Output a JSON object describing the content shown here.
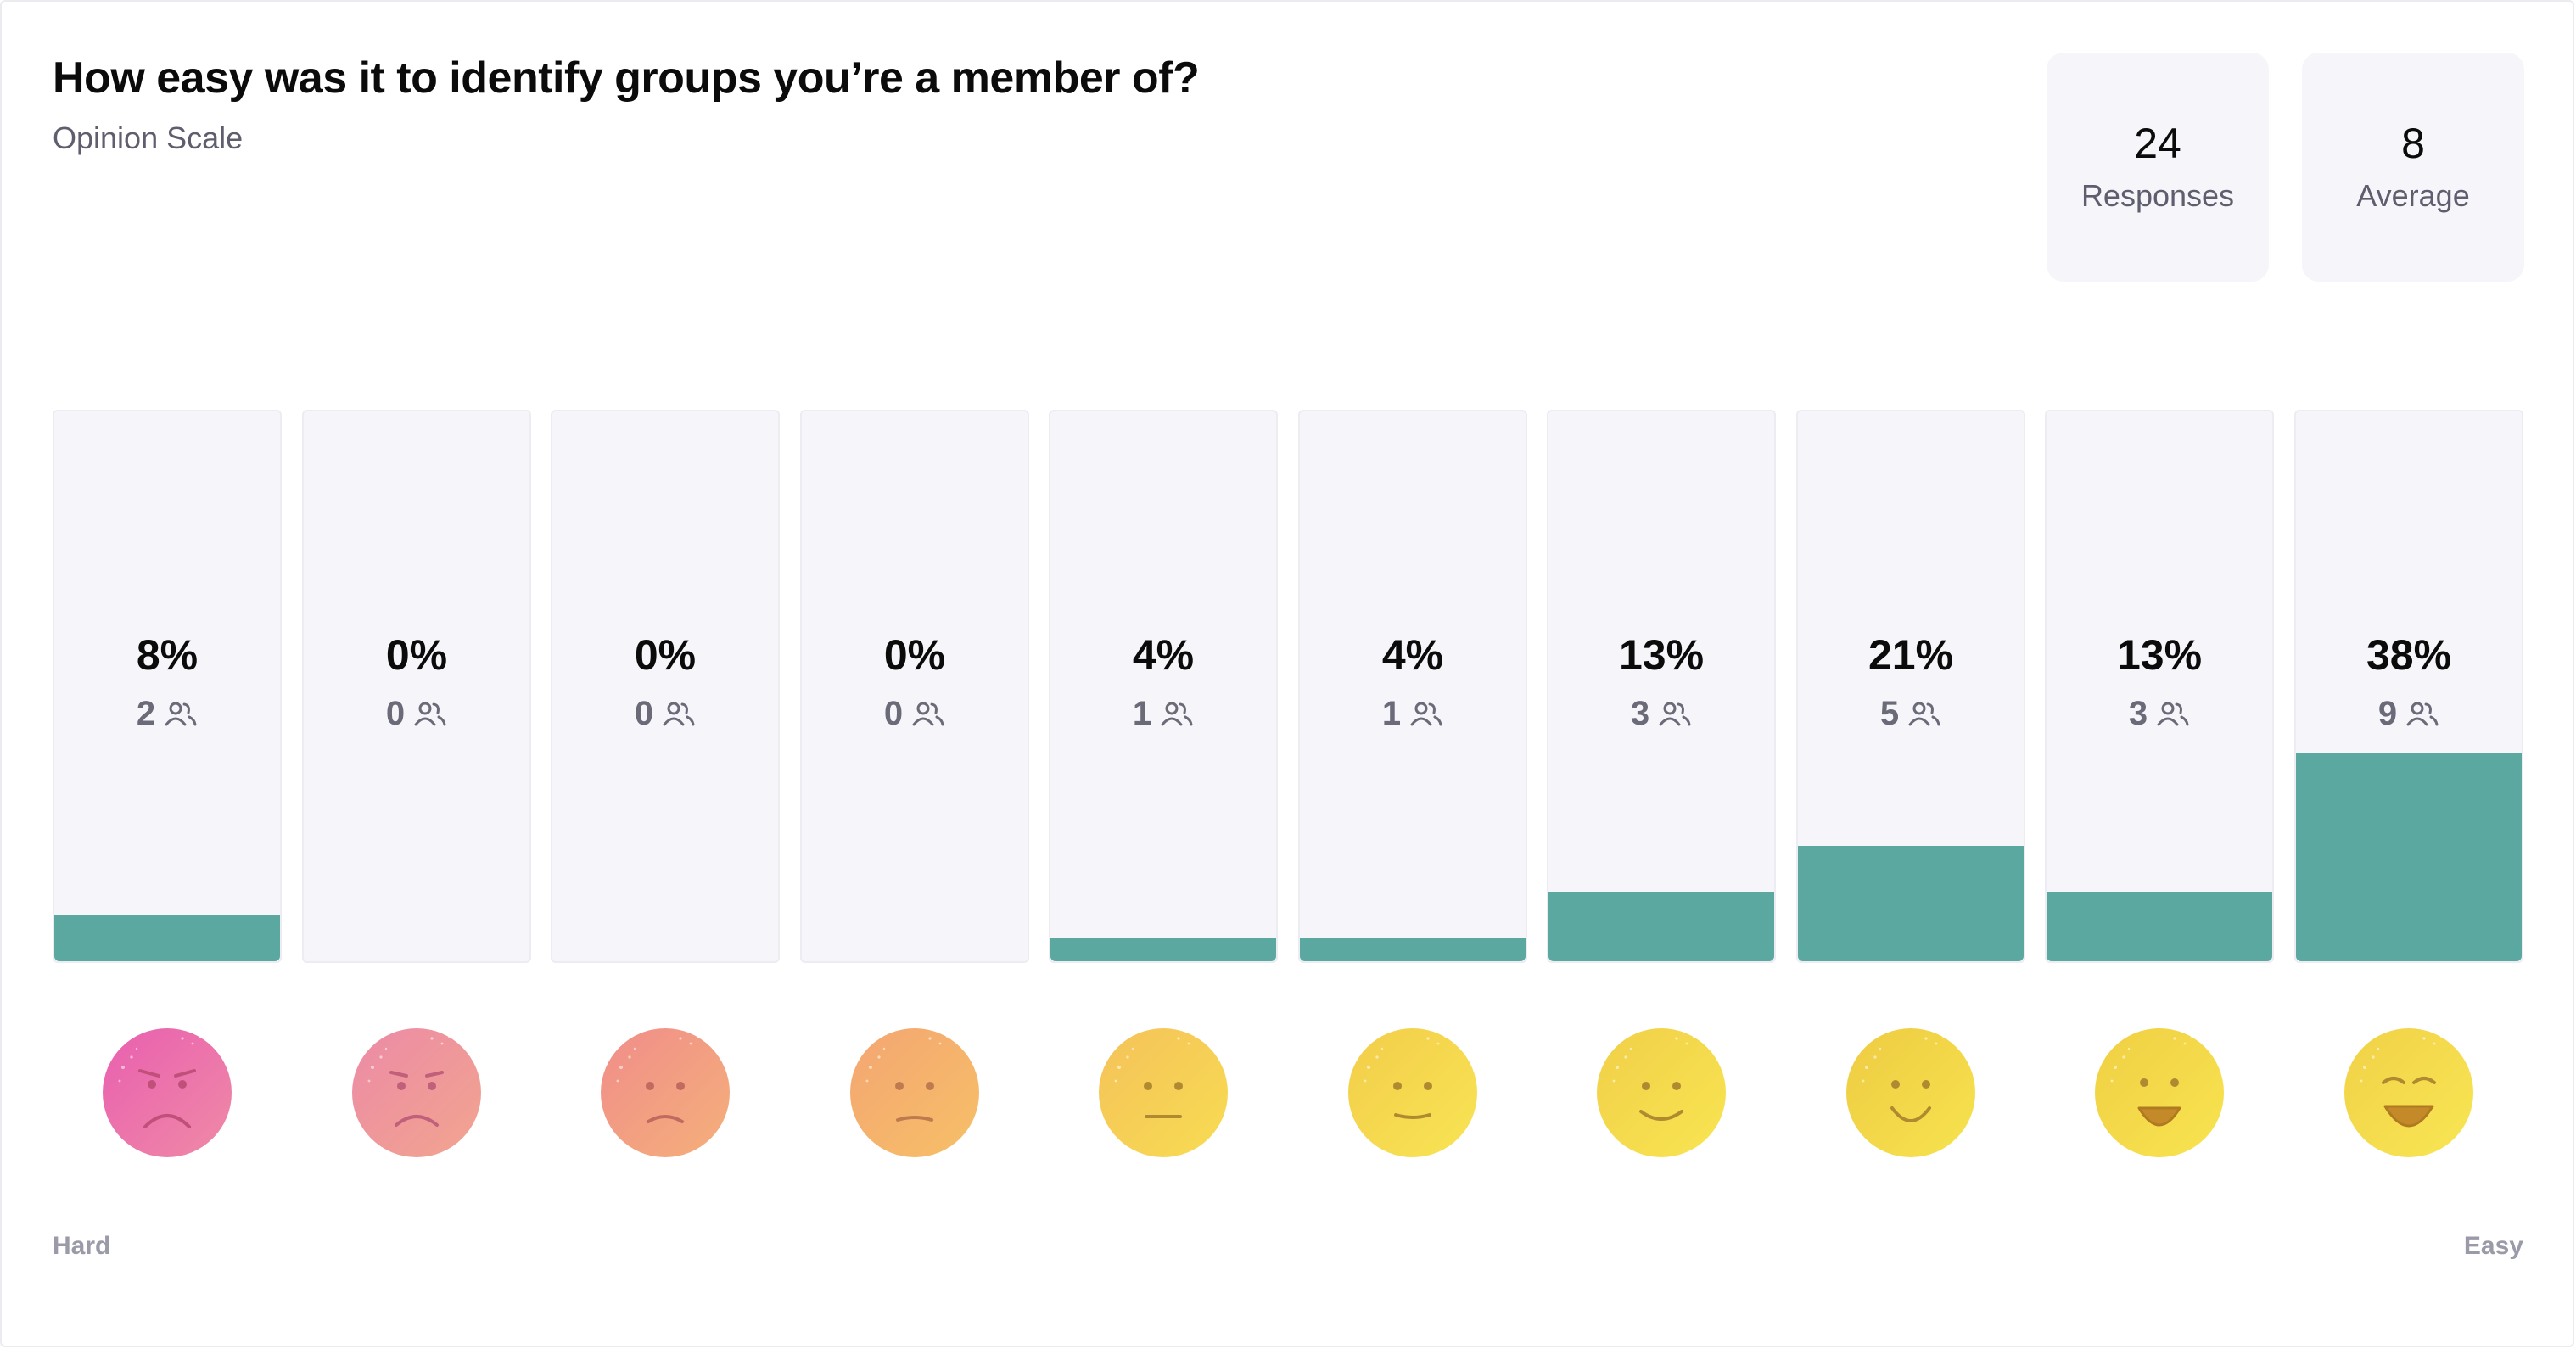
{
  "question": {
    "title": "How easy was it to identify groups you’re a member of?",
    "type_label": "Opinion Scale"
  },
  "stats": {
    "responses": {
      "value": "24",
      "label": "Responses"
    },
    "average": {
      "value": "8",
      "label": "Average"
    }
  },
  "scale": {
    "min_label": "Hard",
    "max_label": "Easy"
  },
  "colors": {
    "bar_fill": "#5aa8a0",
    "track": "#f6f6fa"
  },
  "chart_data": {
    "type": "bar",
    "categories": [
      "1",
      "2",
      "3",
      "4",
      "5",
      "6",
      "7",
      "8",
      "9",
      "10"
    ],
    "values": [
      2,
      0,
      0,
      0,
      1,
      1,
      3,
      5,
      3,
      9
    ],
    "percent_labels": [
      "8%",
      "0%",
      "0%",
      "0%",
      "4%",
      "4%",
      "13%",
      "21%",
      "13%",
      "38%"
    ],
    "count_labels": [
      "2",
      "0",
      "0",
      "0",
      "1",
      "1",
      "3",
      "5",
      "3",
      "9"
    ],
    "count_icon": "people-icon",
    "max_scale": 24,
    "face_icons": [
      "very-sad-face-icon",
      "sad-face-icon",
      "unhappy-face-icon",
      "slightly-unhappy-face-icon",
      "neutral-face-icon",
      "slightly-smiling-face-icon",
      "smiling-face-icon",
      "happy-face-icon",
      "grinning-face-icon",
      "laughing-face-icon"
    ]
  }
}
